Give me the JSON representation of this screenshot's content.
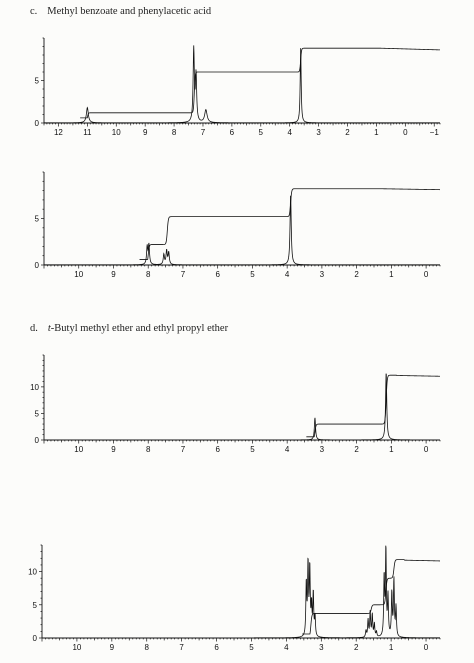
{
  "headings": {
    "c": {
      "letter": "c.",
      "text": "Methyl benzoate and phenylacetic acid"
    },
    "d": {
      "letter": "d.",
      "italic": "t",
      "text": "-Butyl methyl ether and ethyl propyl ether"
    }
  },
  "colors": {
    "ink": "#111111",
    "paper": "#fcfcfa"
  },
  "chart_data": [
    {
      "type": "line",
      "title": "",
      "xlabel": "",
      "ylabel": "",
      "x_reversed": true,
      "xlim": [
        12.5,
        -1.2
      ],
      "ylim": [
        0,
        10
      ],
      "x_ticks": [
        12,
        11,
        10,
        9,
        8,
        7,
        6,
        5,
        4,
        3,
        2,
        1,
        0,
        -1
      ],
      "x_tick_labels": [
        "12",
        "11",
        "10",
        "9",
        "8",
        "7",
        "6",
        "5",
        "4",
        "3",
        "2",
        "1",
        "0",
        "−1"
      ],
      "y_ticks": [
        0,
        5
      ],
      "y_tick_labels": [
        "0",
        "5"
      ],
      "peaks": [
        {
          "ppm": 11.0,
          "height": 1.8,
          "width": 0.04
        },
        {
          "ppm": 7.32,
          "height": 8.6,
          "width": 0.025
        },
        {
          "ppm": 7.24,
          "height": 5.5,
          "width": 0.025
        },
        {
          "ppm": 6.9,
          "height": 1.5,
          "width": 0.05
        },
        {
          "ppm": 3.62,
          "height": 8.8,
          "width": 0.02
        }
      ],
      "integral_steps": [
        {
          "ppm": 11.0,
          "level": 1.2
        },
        {
          "ppm": 7.3,
          "level": 6.0
        },
        {
          "ppm": 3.62,
          "level": 8.8
        }
      ],
      "integral_end": 8.6
    },
    {
      "type": "line",
      "title": "",
      "xlabel": "",
      "ylabel": "",
      "x_reversed": true,
      "xlim": [
        11.0,
        -0.4
      ],
      "ylim": [
        0,
        10
      ],
      "x_ticks": [
        10,
        9,
        8,
        7,
        6,
        5,
        4,
        3,
        2,
        1,
        0
      ],
      "x_tick_labels": [
        "10",
        "9",
        "8",
        "7",
        "6",
        "5",
        "4",
        "3",
        "2",
        "1",
        "0"
      ],
      "y_ticks": [
        0,
        5
      ],
      "y_tick_labels": [
        "0",
        "5"
      ],
      "peaks": [
        {
          "ppm": 8.03,
          "height": 1.9,
          "width": 0.02
        },
        {
          "ppm": 7.98,
          "height": 2.1,
          "width": 0.02
        },
        {
          "ppm": 7.55,
          "height": 1.1,
          "width": 0.02
        },
        {
          "ppm": 7.47,
          "height": 1.5,
          "width": 0.02
        },
        {
          "ppm": 7.41,
          "height": 1.3,
          "width": 0.02
        },
        {
          "ppm": 3.9,
          "height": 7.6,
          "width": 0.02
        }
      ],
      "integral_steps": [
        {
          "ppm": 8.0,
          "level": 2.2
        },
        {
          "ppm": 7.45,
          "level": 5.2
        },
        {
          "ppm": 3.9,
          "level": 8.2
        }
      ],
      "integral_end": 8.1
    },
    {
      "type": "line",
      "title": "",
      "xlabel": "",
      "ylabel": "",
      "x_reversed": true,
      "xlim": [
        11.0,
        -0.4
      ],
      "ylim": [
        0,
        16
      ],
      "x_ticks": [
        10,
        9,
        8,
        7,
        6,
        5,
        4,
        3,
        2,
        1,
        0
      ],
      "x_tick_labels": [
        "10",
        "9",
        "8",
        "7",
        "6",
        "5",
        "4",
        "3",
        "2",
        "1",
        "0"
      ],
      "y_ticks": [
        0,
        5,
        10
      ],
      "y_tick_labels": [
        "0",
        "5",
        "10"
      ],
      "peaks": [
        {
          "ppm": 3.2,
          "height": 4.2,
          "width": 0.02
        },
        {
          "ppm": 1.15,
          "height": 12.8,
          "width": 0.02
        }
      ],
      "integral_steps": [
        {
          "ppm": 3.2,
          "level": 3.0
        },
        {
          "ppm": 1.15,
          "level": 12.2
        }
      ],
      "integral_end": 12.0
    },
    {
      "type": "line",
      "title": "",
      "xlabel": "",
      "ylabel": "",
      "x_reversed": true,
      "xlim": [
        11.0,
        -0.4
      ],
      "ylim": [
        0,
        14
      ],
      "x_ticks": [
        10,
        9,
        8,
        7,
        6,
        5,
        4,
        3,
        2,
        1,
        0
      ],
      "x_tick_labels": [
        "10",
        "9",
        "8",
        "7",
        "6",
        "5",
        "4",
        "3",
        "2",
        "1",
        "0"
      ],
      "y_ticks": [
        0,
        5,
        10
      ],
      "y_tick_labels": [
        "0",
        "5",
        "10"
      ],
      "peaks": [
        {
          "ppm": 3.43,
          "height": 8.0,
          "width": 0.015
        },
        {
          "ppm": 3.38,
          "height": 10.8,
          "width": 0.015
        },
        {
          "ppm": 3.33,
          "height": 10.2,
          "width": 0.015
        },
        {
          "ppm": 3.28,
          "height": 4.5,
          "width": 0.015
        },
        {
          "ppm": 3.23,
          "height": 6.5,
          "width": 0.015
        },
        {
          "ppm": 3.18,
          "height": 3.0,
          "width": 0.015
        },
        {
          "ppm": 1.72,
          "height": 1.0,
          "width": 0.015
        },
        {
          "ppm": 1.66,
          "height": 2.6,
          "width": 0.015
        },
        {
          "ppm": 1.6,
          "height": 3.8,
          "width": 0.015
        },
        {
          "ppm": 1.54,
          "height": 3.4,
          "width": 0.015
        },
        {
          "ppm": 1.48,
          "height": 2.0,
          "width": 0.015
        },
        {
          "ppm": 1.42,
          "height": 0.8,
          "width": 0.015
        },
        {
          "ppm": 1.2,
          "height": 9.0,
          "width": 0.015
        },
        {
          "ppm": 1.15,
          "height": 13.2,
          "width": 0.015
        },
        {
          "ppm": 1.09,
          "height": 6.0,
          "width": 0.015
        },
        {
          "ppm": 0.98,
          "height": 6.6,
          "width": 0.015
        },
        {
          "ppm": 0.92,
          "height": 8.6,
          "width": 0.015
        },
        {
          "ppm": 0.86,
          "height": 4.5,
          "width": 0.015
        }
      ],
      "integral_steps": [
        {
          "ppm": 3.3,
          "level": 3.7
        },
        {
          "ppm": 1.57,
          "level": 5.0
        },
        {
          "ppm": 1.15,
          "level": 9.0
        },
        {
          "ppm": 0.92,
          "level": 11.8
        }
      ],
      "integral_end": 11.6
    }
  ]
}
